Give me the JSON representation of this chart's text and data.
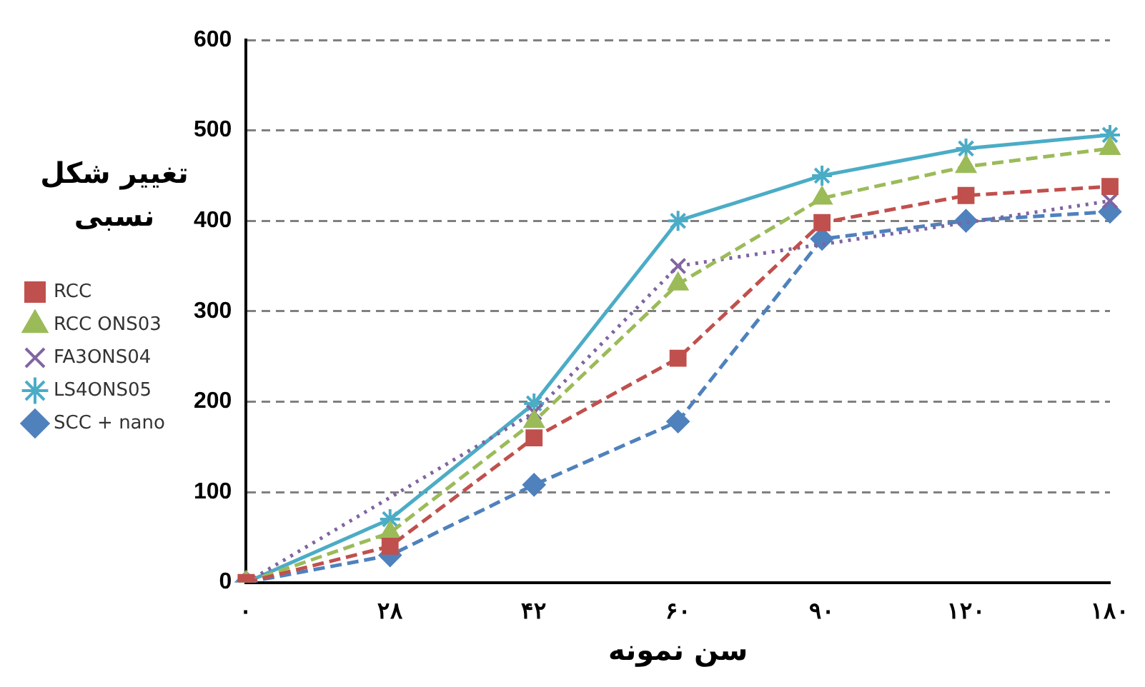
{
  "chart_data": {
    "type": "line",
    "xlabel": "سن نمونه",
    "ylabel": "تغییر شکل نسبی",
    "categories": [
      "۰",
      "۲۸",
      "۴۲",
      "۶۰",
      "۹۰",
      "۱۲۰",
      "۱۸۰"
    ],
    "series": [
      {
        "name": "RCC",
        "color": "#c0504d",
        "marker": "square",
        "line_style": "dashed",
        "values": [
          0,
          40,
          160,
          248,
          398,
          428,
          438
        ]
      },
      {
        "name": "RCC ONS03",
        "color": "#9bbb59",
        "marker": "triangle",
        "line_style": "dashed",
        "values": [
          0,
          55,
          178,
          330,
          425,
          460,
          480
        ]
      },
      {
        "name": "FA3ONS04",
        "color": "#8064a2",
        "marker": "cross",
        "line_style": "dotted",
        "values": [
          0,
          null,
          188,
          350,
          null,
          null,
          422
        ]
      },
      {
        "name": "LS4ONS05",
        "color": "#4bacc6",
        "marker": "cross",
        "line_style": "solid",
        "values": [
          0,
          70,
          198,
          400,
          450,
          480,
          495
        ]
      },
      {
        "name": "SCC + nano",
        "color": "#4f81bd",
        "marker": "diamond",
        "line_style": "dashed",
        "values": [
          0,
          30,
          108,
          178,
          380,
          400,
          410
        ]
      }
    ],
    "ylim": [
      0,
      600
    ],
    "yticks": [
      0,
      100,
      200,
      300,
      400,
      500,
      600
    ],
    "grid": "y",
    "legend": "left"
  }
}
